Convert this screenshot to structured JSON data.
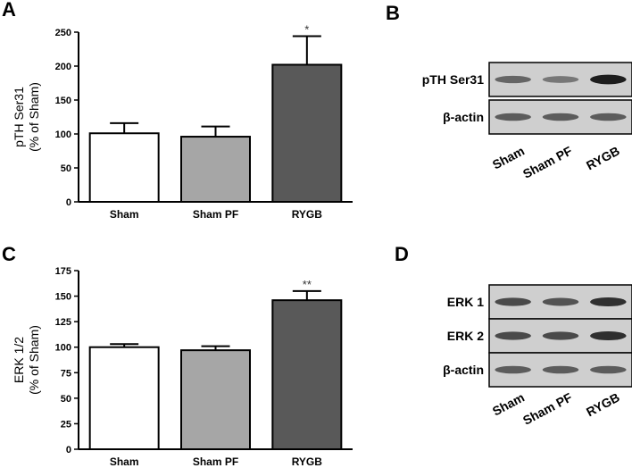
{
  "chart_data": [
    {
      "panel": "A",
      "type": "bar",
      "categories": [
        "Sham",
        "Sham PF",
        "RYGB"
      ],
      "values": [
        101,
        96,
        202
      ],
      "errors": [
        15,
        15,
        42
      ],
      "significance": [
        "",
        "",
        "*"
      ],
      "ylabel_line1": "pTH Ser31",
      "ylabel_line2": "(% of Sham)",
      "ylim": [
        0,
        250
      ],
      "yticks": [
        0,
        50,
        100,
        150,
        200,
        250
      ],
      "bar_colors": [
        "#ffffff",
        "#a6a6a6",
        "#595959"
      ]
    },
    {
      "panel": "C",
      "type": "bar",
      "categories": [
        "Sham",
        "Sham PF",
        "RYGB"
      ],
      "values": [
        100,
        97,
        146
      ],
      "errors": [
        3,
        4,
        9
      ],
      "significance": [
        "",
        "",
        "**"
      ],
      "ylabel_line1": "ERK 1/2",
      "ylabel_line2": "(% of Sham)",
      "ylim": [
        0,
        175
      ],
      "yticks": [
        0,
        25,
        50,
        75,
        100,
        125,
        150,
        175
      ],
      "bar_colors": [
        "#ffffff",
        "#a6a6a6",
        "#595959"
      ]
    }
  ],
  "blots": [
    {
      "panel": "B",
      "rows": [
        "pTH Ser31",
        "β-actin"
      ],
      "lanes": [
        "Sham",
        "Sham PF",
        "RYGB"
      ],
      "band_intensity": [
        [
          0.55,
          0.45,
          0.95
        ],
        [
          0.6,
          0.6,
          0.6
        ]
      ]
    },
    {
      "panel": "D",
      "rows": [
        "ERK 1",
        "ERK 2",
        "β-actin"
      ],
      "lanes": [
        "Sham",
        "Sham PF",
        "RYGB"
      ],
      "band_intensity": [
        [
          0.7,
          0.65,
          0.85
        ],
        [
          0.7,
          0.7,
          0.85
        ],
        [
          0.6,
          0.6,
          0.6
        ]
      ]
    }
  ]
}
